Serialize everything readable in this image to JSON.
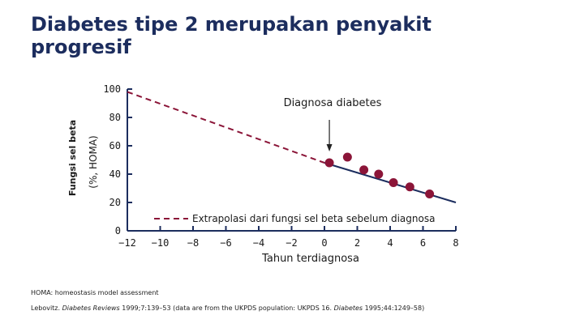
{
  "slide": {
    "title": "Diabetes tipe 2 merupakan penyakit progresif",
    "footnote_abbrev": "HOMA: homeostasis model assessment",
    "citation": {
      "part1": "Lebovitz. ",
      "journal1": "Diabetes Reviews",
      "part2": " 1999;7:139–53 (data are from the UKPDS population: UKPDS 16. ",
      "journal2": "Diabetes",
      "part3": " 1995;44:1249–58)"
    }
  },
  "chart_data": {
    "type": "scatter",
    "title": "",
    "ylabel_line1": "Fungsi sel beta",
    "ylabel_line2": "(%, HOMA)",
    "xlabel": "Tahun terdiagnosa",
    "xlim": [
      -12,
      8
    ],
    "ylim": [
      0,
      100
    ],
    "x_ticks": [
      -12,
      -10,
      -8,
      -6,
      -4,
      -2,
      0,
      2,
      4,
      6,
      8
    ],
    "x_tick_labels": [
      "−12",
      "−10",
      "−8",
      "−6",
      "−4",
      "−2",
      "0",
      "2",
      "4",
      "6",
      "8"
    ],
    "y_ticks": [
      0,
      20,
      40,
      60,
      80,
      100
    ],
    "y_tick_labels": [
      "0",
      "20",
      "40",
      "60",
      "80",
      "100"
    ],
    "grid": false,
    "series": [
      {
        "name": "",
        "kind": "points",
        "color": "#8b1538",
        "points": [
          [
            0.3,
            48
          ],
          [
            1.4,
            52
          ],
          [
            2.4,
            43
          ],
          [
            3.3,
            40
          ],
          [
            4.2,
            34
          ],
          [
            5.2,
            31
          ],
          [
            6.4,
            26
          ]
        ]
      },
      {
        "name": "",
        "kind": "solid-line",
        "color": "#1c2d5e",
        "points": [
          [
            0,
            48
          ],
          [
            8,
            20
          ]
        ]
      },
      {
        "name": "Extrapolasi dari fungsi sel beta sebelum diagnosa",
        "kind": "dashed-line",
        "color": "#8b1538",
        "points": [
          [
            -12,
            98
          ],
          [
            0,
            48
          ]
        ]
      }
    ],
    "annotation": {
      "text": "Diagnosa diabetes",
      "x": 0.3
    },
    "legend_position": "bottom-center"
  },
  "colors": {
    "title": "#1c2d5e",
    "axis": "#1c2d5e",
    "text": "#1a1a1a"
  }
}
